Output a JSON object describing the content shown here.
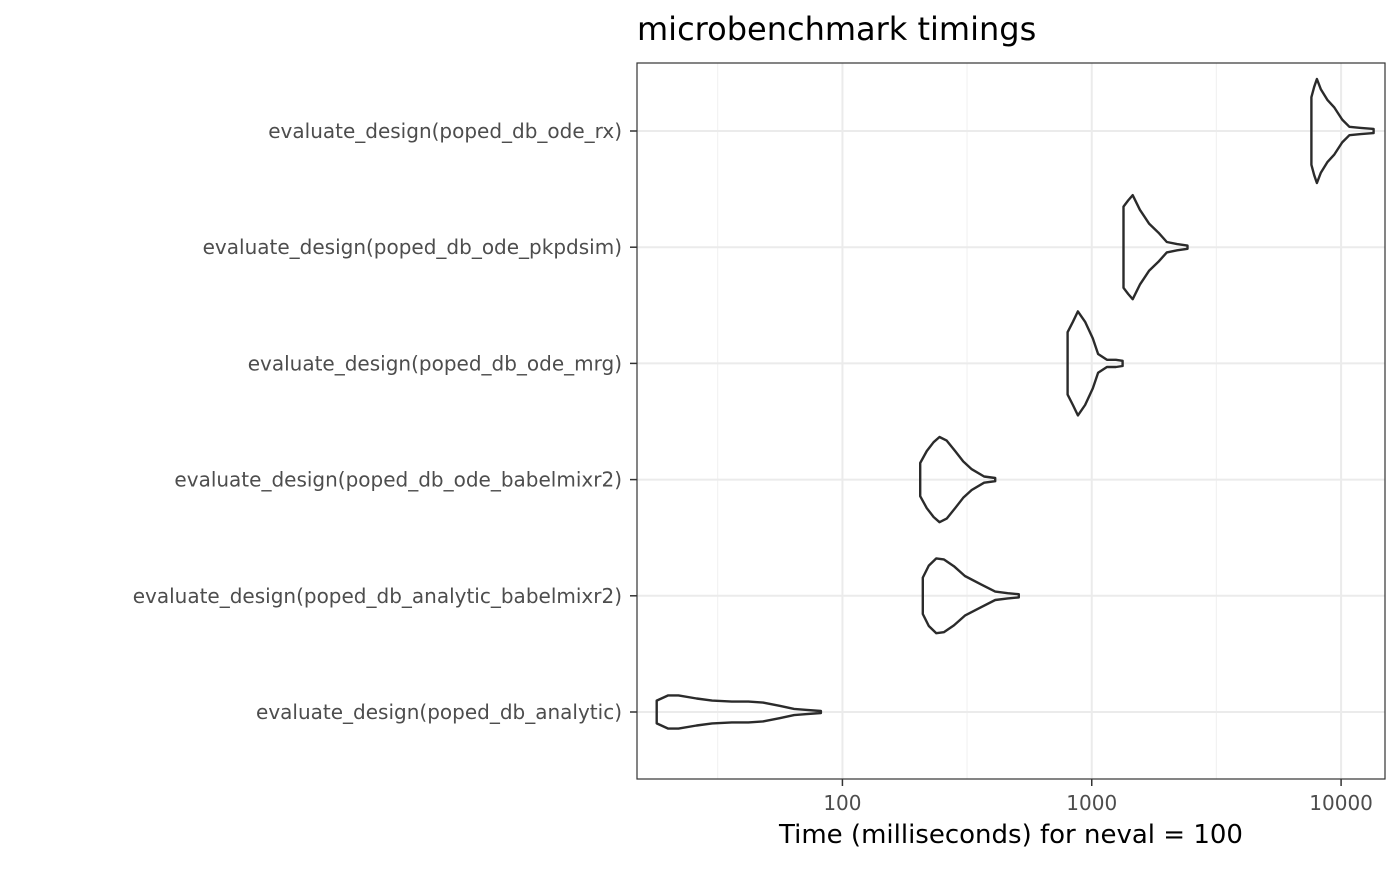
{
  "chart_data": {
    "type": "violin",
    "title": "microbenchmark timings",
    "xlabel": "Time (milliseconds) for neval = 100",
    "ylabel": "",
    "x_scale": "log10",
    "xlim": [
      15,
      15000
    ],
    "x_ticks": [
      {
        "value": 100,
        "label": "100"
      },
      {
        "value": 1000,
        "label": "1000"
      },
      {
        "value": 10000,
        "label": "10000"
      }
    ],
    "x_minor_ticks": [
      31.6,
      316,
      3162
    ],
    "grid": true,
    "categories": [
      "evaluate_design(poped_db_ode_rx)",
      "evaluate_design(poped_db_ode_pkpdsim)",
      "evaluate_design(poped_db_ode_mrg)",
      "evaluate_design(poped_db_ode_babelmixr2)",
      "evaluate_design(poped_db_analytic_babelmixr2)",
      "evaluate_design(poped_db_analytic)"
    ],
    "series": [
      {
        "category": "evaluate_design(poped_db_ode_rx)",
        "min": 7600,
        "max": 13500,
        "profile": [
          [
            7600,
            0.65
          ],
          [
            7800,
            0.85
          ],
          [
            8000,
            1.0
          ],
          [
            8300,
            0.8
          ],
          [
            8800,
            0.6
          ],
          [
            9400,
            0.45
          ],
          [
            10100,
            0.22
          ],
          [
            10800,
            0.08
          ],
          [
            12000,
            0.06
          ],
          [
            13500,
            0.04
          ]
        ]
      },
      {
        "category": "evaluate_design(poped_db_ode_pkpdsim)",
        "min": 1340,
        "max": 2420,
        "profile": [
          [
            1340,
            0.78
          ],
          [
            1400,
            0.9
          ],
          [
            1460,
            1.0
          ],
          [
            1560,
            0.72
          ],
          [
            1700,
            0.45
          ],
          [
            1850,
            0.28
          ],
          [
            2000,
            0.1
          ],
          [
            2200,
            0.06
          ],
          [
            2420,
            0.03
          ]
        ]
      },
      {
        "category": "evaluate_design(poped_db_ode_mrg)",
        "min": 800,
        "max": 1330,
        "profile": [
          [
            800,
            0.6
          ],
          [
            840,
            0.8
          ],
          [
            880,
            1.0
          ],
          [
            940,
            0.8
          ],
          [
            1010,
            0.48
          ],
          [
            1060,
            0.18
          ],
          [
            1150,
            0.07
          ],
          [
            1250,
            0.07
          ],
          [
            1330,
            0.05
          ]
        ]
      },
      {
        "category": "evaluate_design(poped_db_ode_babelmixr2)",
        "min": 205,
        "max": 410,
        "profile": [
          [
            205,
            0.32
          ],
          [
            218,
            0.55
          ],
          [
            232,
            0.72
          ],
          [
            245,
            0.82
          ],
          [
            262,
            0.75
          ],
          [
            283,
            0.55
          ],
          [
            305,
            0.35
          ],
          [
            330,
            0.2
          ],
          [
            370,
            0.06
          ],
          [
            410,
            0.03
          ]
        ]
      },
      {
        "category": "evaluate_design(poped_db_analytic_babelmixr2)",
        "min": 210,
        "max": 510,
        "profile": [
          [
            210,
            0.35
          ],
          [
            222,
            0.58
          ],
          [
            238,
            0.72
          ],
          [
            255,
            0.7
          ],
          [
            280,
            0.57
          ],
          [
            310,
            0.38
          ],
          [
            360,
            0.22
          ],
          [
            410,
            0.08
          ],
          [
            460,
            0.05
          ],
          [
            510,
            0.03
          ]
        ]
      },
      {
        "category": "evaluate_design(poped_db_analytic)",
        "min": 18,
        "max": 82,
        "profile": [
          [
            18,
            0.22
          ],
          [
            20,
            0.32
          ],
          [
            22,
            0.32
          ],
          [
            26,
            0.26
          ],
          [
            30,
            0.22
          ],
          [
            36,
            0.2
          ],
          [
            42,
            0.2
          ],
          [
            48,
            0.18
          ],
          [
            56,
            0.12
          ],
          [
            64,
            0.06
          ],
          [
            72,
            0.04
          ],
          [
            82,
            0.02
          ]
        ]
      }
    ],
    "colors": {
      "outline": "#2b2b2b",
      "grid_major": "#ebebeb",
      "grid_minor": "#f2f2f2",
      "panel_border": "#333333",
      "tick_text": "#4d4d4d"
    }
  }
}
